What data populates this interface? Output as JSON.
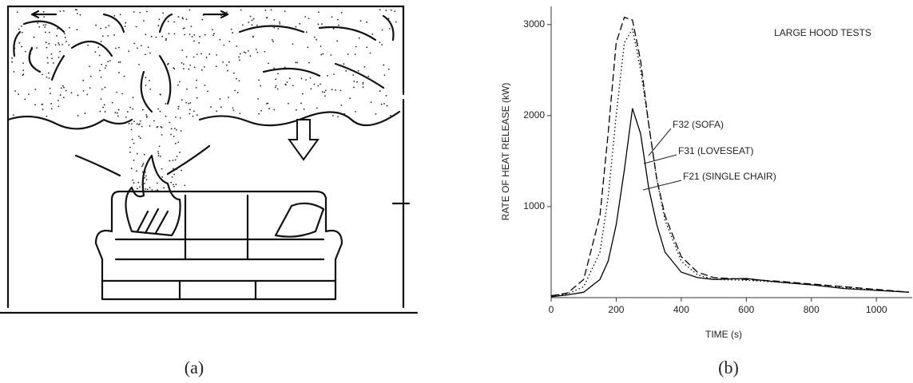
{
  "panel_labels": [
    "(a)",
    "(b)"
  ],
  "chart_data": {
    "type": "line",
    "title": "LARGE HOOD TESTS",
    "x_label": "TIME (s)",
    "y_label": "RATE OF HEAT RELEASE (kW)",
    "x": [
      0,
      50,
      100,
      150,
      175,
      200,
      225,
      250,
      275,
      300,
      325,
      350,
      400,
      450,
      500,
      600,
      700,
      800,
      900,
      1000,
      1100
    ],
    "series": [
      {
        "name": "F32 (SOFA)",
        "color": "#000000",
        "style": "dashed",
        "values": [
          20,
          50,
          200,
          900,
          1800,
          2800,
          3080,
          3050,
          2600,
          1900,
          1300,
          900,
          450,
          280,
          220,
          200,
          180,
          150,
          120,
          90,
          60
        ]
      },
      {
        "name": "F31 (LOVESEAT)",
        "color": "#000000",
        "style": "dotted",
        "values": [
          20,
          40,
          120,
          500,
          1100,
          2000,
          2800,
          2950,
          2500,
          1900,
          1300,
          850,
          400,
          250,
          200,
          190,
          170,
          140,
          110,
          80,
          60
        ]
      },
      {
        "name": "F21 (SINGLE CHAIR)",
        "color": "#000000",
        "style": "solid",
        "values": [
          10,
          30,
          60,
          200,
          400,
          800,
          1400,
          2080,
          1800,
          1200,
          800,
          500,
          280,
          220,
          200,
          210,
          170,
          140,
          100,
          80,
          60
        ]
      }
    ],
    "xlim": [
      0,
      1110
    ],
    "xticks": [
      0,
      200,
      400,
      600,
      800,
      1000
    ],
    "ylim": [
      0,
      3200
    ],
    "yticks": [
      1000,
      2000,
      3000
    ],
    "grid": false
  }
}
